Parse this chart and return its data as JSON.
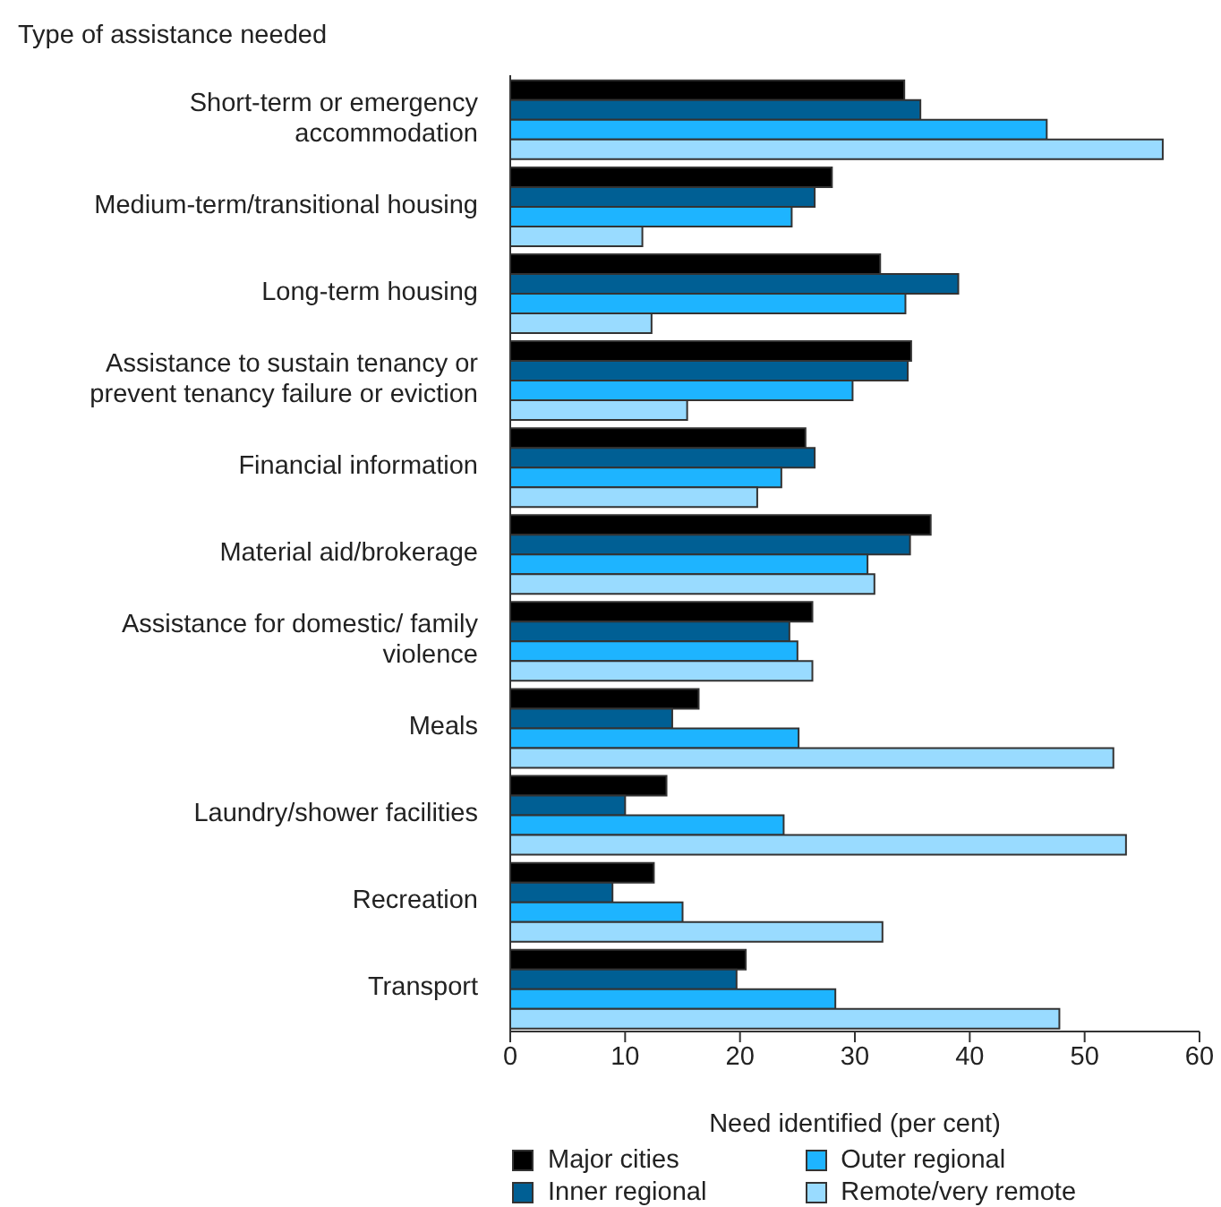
{
  "chart_data": {
    "type": "bar",
    "orientation": "horizontal",
    "ylabel": "Type of assistance needed",
    "xlabel": "Need identified (per cent)",
    "categories": [
      "Short-term or emergency accommodation",
      "Medium-term/transitional housing",
      "Long-term housing",
      "Assistance to sustain tenancy or prevent tenancy failure or eviction",
      "Financial information",
      "Material aid/brokerage",
      "Assistance for domestic/ family violence",
      "Meals",
      "Laundry/shower facilities",
      "Recreation",
      "Transport"
    ],
    "series": [
      {
        "name": "Major cities",
        "color": "#000000",
        "values": [
          34.3,
          28.0,
          32.2,
          34.9,
          25.7,
          36.6,
          26.3,
          16.4,
          13.6,
          12.5,
          20.5
        ]
      },
      {
        "name": "Inner regional",
        "color": "#005f94",
        "values": [
          35.7,
          26.5,
          39.0,
          34.6,
          26.5,
          34.8,
          24.3,
          14.1,
          10.0,
          8.9,
          19.7
        ]
      },
      {
        "name": "Outer regional",
        "color": "#1eb4ff",
        "values": [
          46.7,
          24.5,
          34.4,
          29.8,
          23.6,
          31.1,
          25.0,
          25.1,
          23.8,
          15.0,
          28.3
        ]
      },
      {
        "name": "Remote/very remote",
        "color": "#99dbff",
        "values": [
          56.8,
          11.5,
          12.3,
          15.4,
          21.5,
          31.7,
          26.3,
          52.5,
          53.6,
          32.4,
          47.8
        ]
      }
    ],
    "xlim": [
      0,
      60
    ],
    "xticks": [
      0,
      10,
      20,
      30,
      40,
      50,
      60
    ],
    "grid": false,
    "legend": "bottom"
  }
}
